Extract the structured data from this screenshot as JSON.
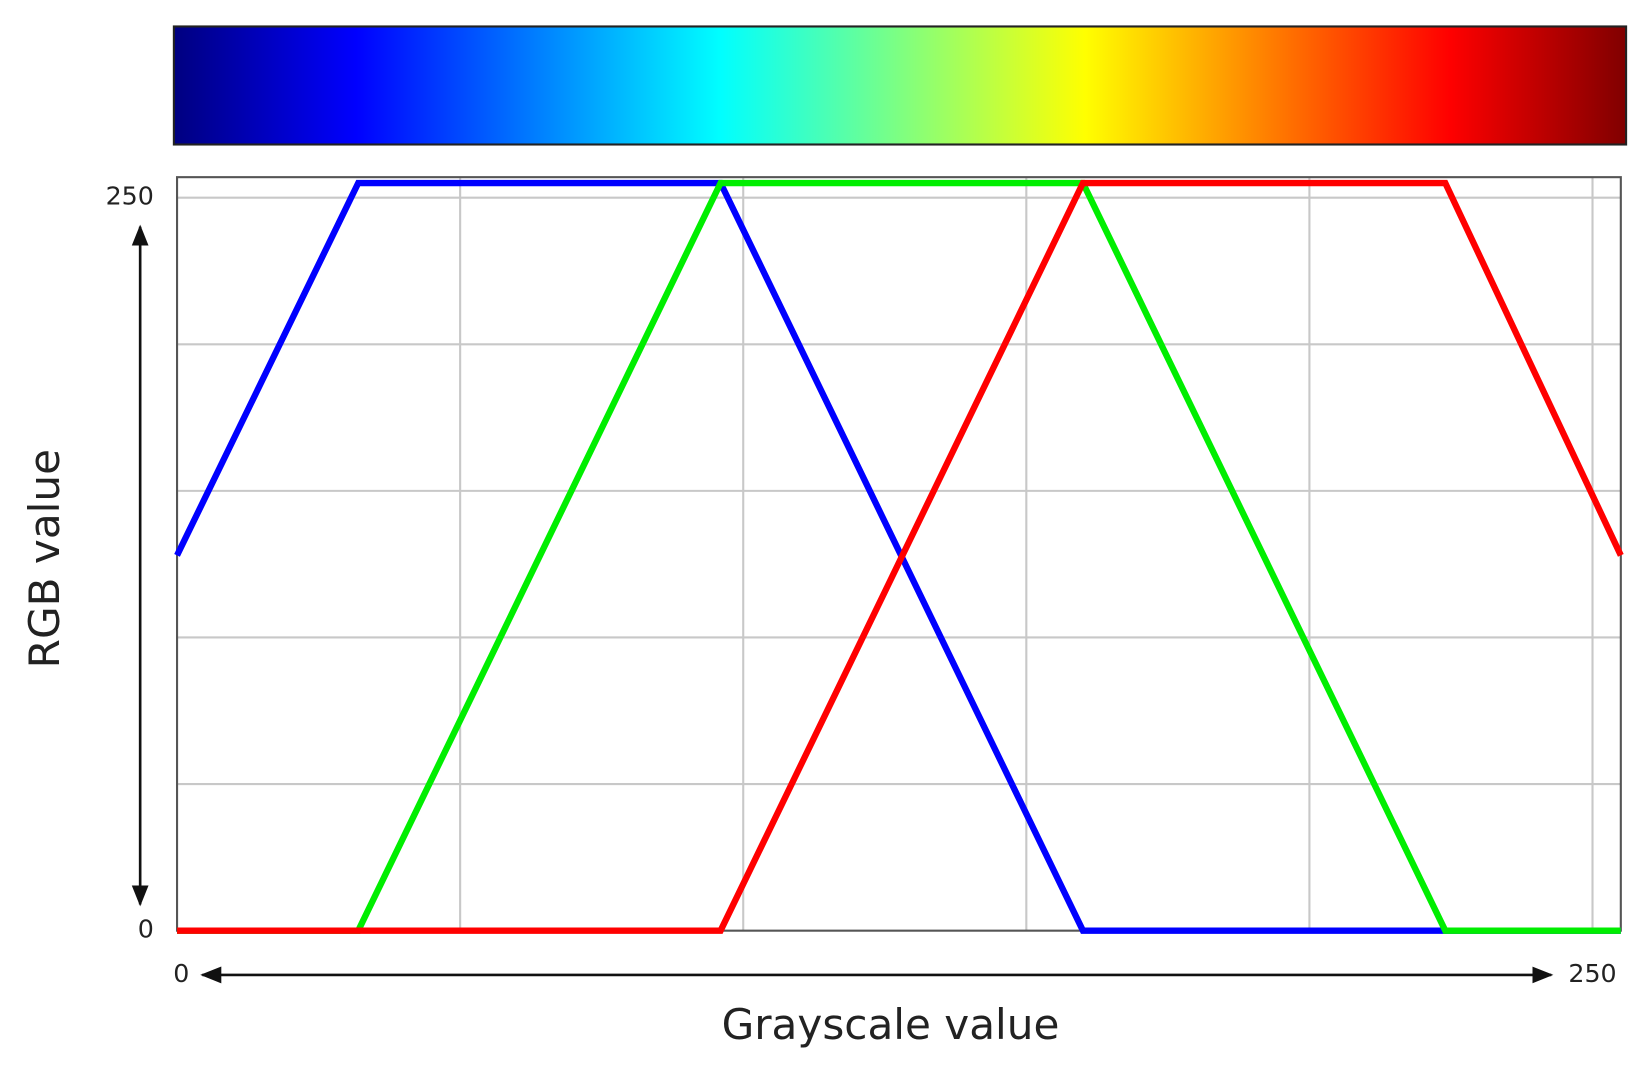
{
  "chart_data": {
    "type": "line",
    "x_label": "Grayscale value",
    "y_label": "RGB value",
    "x": [
      0,
      32,
      96,
      160,
      224,
      255
    ],
    "series": [
      {
        "color": "#0000ff",
        "values": [
          128,
          255,
          255,
          0,
          0,
          0
        ]
      },
      {
        "color": "#00ee00",
        "values": [
          0,
          0,
          255,
          255,
          0,
          0
        ]
      },
      {
        "color": "#ff0000",
        "values": [
          0,
          0,
          0,
          255,
          255,
          128
        ]
      }
    ],
    "xlim": [
      0,
      255
    ],
    "ylim": [
      0,
      257
    ],
    "xticks": [
      0,
      250
    ],
    "yticks": [
      0,
      250
    ],
    "xgrid": [
      50,
      100,
      150,
      200,
      250
    ],
    "ygrid": [
      50,
      100,
      150,
      200,
      250
    ],
    "colorbar": true
  }
}
